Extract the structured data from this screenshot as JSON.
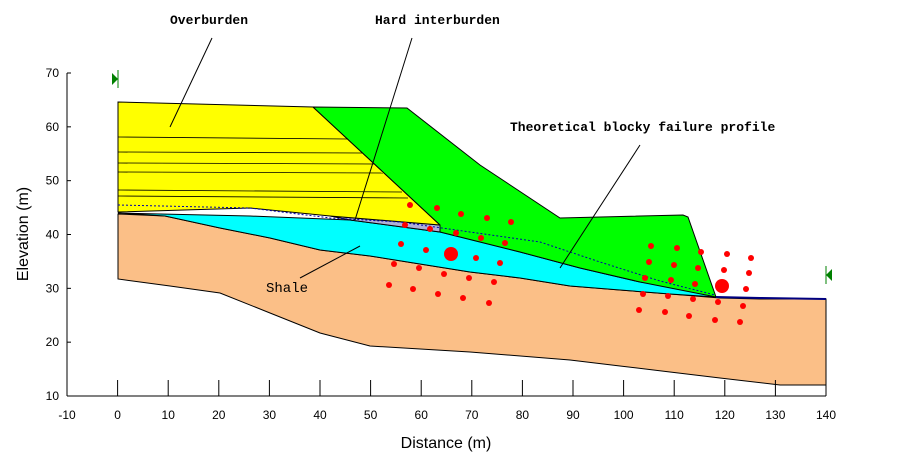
{
  "labels": {
    "overburden": "Overburden",
    "hard_interburden": "Hard interburden",
    "failure_profile": "Theoretical blocky failure profile",
    "shale": "Shale"
  },
  "axes": {
    "x_label": "Distance (m)",
    "y_label": "Elevation (m)",
    "xlim": [
      -10,
      140
    ],
    "ylim": [
      10,
      70
    ],
    "xticks": [
      -10,
      0,
      10,
      20,
      30,
      40,
      50,
      60,
      70,
      80,
      90,
      100,
      110,
      120,
      130,
      140
    ],
    "yticks": [
      10,
      20,
      30,
      40,
      50,
      60,
      70
    ]
  }
}
